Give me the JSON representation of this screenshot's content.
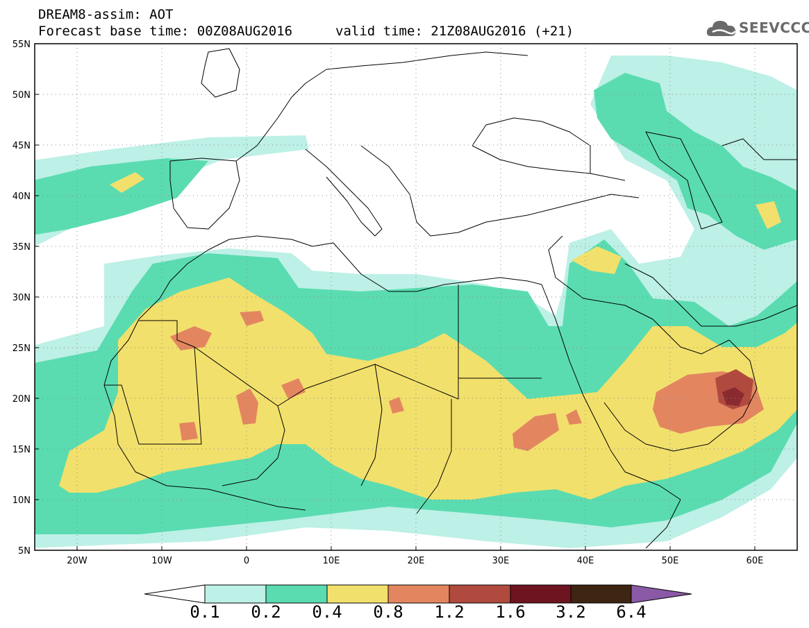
{
  "title": {
    "line1": "DREAM8-assim: AOT",
    "line2": "Forecast base time: 00Z08AUG2016",
    "valid": "valid time: 21Z08AUG2016 (+21)"
  },
  "logo": {
    "text": "SEEVCCC",
    "icon": "cloud-icon"
  },
  "map": {
    "lat_labels": [
      "55N",
      "50N",
      "45N",
      "40N",
      "35N",
      "30N",
      "25N",
      "20N",
      "15N",
      "10N",
      "5N"
    ],
    "lon_labels": [
      "20W",
      "10W",
      "0",
      "10E",
      "20E",
      "30E",
      "40E",
      "50E",
      "60E"
    ],
    "lat_range": [
      5,
      55
    ],
    "lon_range": [
      -25,
      65
    ],
    "grid": "dotted"
  },
  "colorbar": {
    "labels": [
      "0.1",
      "0.2",
      "0.4",
      "0.8",
      "1.2",
      "1.6",
      "3.2",
      "6.4"
    ],
    "colors": [
      "#bdf0e6",
      "#5adcb0",
      "#f2e06c",
      "#e38660",
      "#b04a3e",
      "#6e1420",
      "#3e2412",
      "#8a5aa6"
    ]
  }
}
